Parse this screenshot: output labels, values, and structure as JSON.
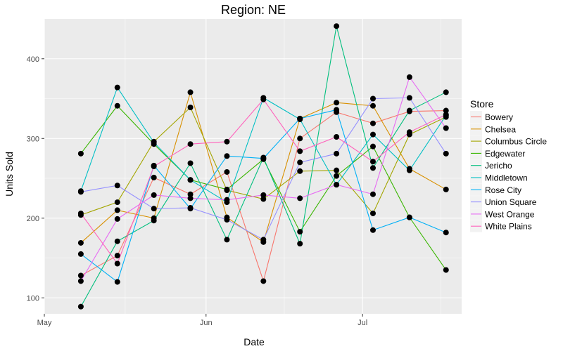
{
  "chart_data": {
    "type": "line",
    "title": "Region: NE",
    "xlabel": "Date",
    "ylabel": "Units Sold",
    "x": [
      "2016-05-08",
      "2016-05-15",
      "2016-05-22",
      "2016-05-29",
      "2016-06-05",
      "2016-06-12",
      "2016-06-19",
      "2016-06-26",
      "2016-07-03",
      "2016-07-10",
      "2016-07-17"
    ],
    "x_ticks": [
      {
        "date": "2016-05-01",
        "label": "May"
      },
      {
        "date": "2016-06-01",
        "label": "Jun"
      },
      {
        "date": "2016-07-01",
        "label": "Jul"
      }
    ],
    "xlim": [
      "2016-05-01",
      "2016-07-20"
    ],
    "ylim": [
      80,
      450
    ],
    "y_ticks": [
      100,
      200,
      300,
      400
    ],
    "grid": true,
    "point_color": "#000000",
    "legend": {
      "title": "Store",
      "position": "right"
    },
    "series": [
      {
        "name": "Bowery",
        "color": "#F8766D",
        "values": [
          128,
          153,
          251,
          230,
          258,
          121,
          300,
          333,
          319,
          334,
          335
        ]
      },
      {
        "name": "Chelsea",
        "color": "#D89000",
        "values": [
          169,
          210,
          200,
          358,
          201,
          170,
          325,
          345,
          341,
          262,
          236
        ]
      },
      {
        "name": "Columbus Circle",
        "color": "#A3A500",
        "values": [
          204,
          220,
          296,
          339,
          235,
          224,
          259,
          260,
          206,
          305,
          327
        ]
      },
      {
        "name": "Edgewater",
        "color": "#39B600",
        "values": [
          281,
          341,
          293,
          248,
          236,
          274,
          183,
          253,
          290,
          201,
          135
        ]
      },
      {
        "name": "Jericho",
        "color": "#00BF7D",
        "values": [
          89,
          171,
          197,
          269,
          173,
          276,
          168,
          441,
          263,
          335,
          358
        ]
      },
      {
        "name": "Middletown",
        "color": "#00BFC4",
        "values": [
          234,
          364,
          295,
          248,
          220,
          351,
          324,
          242,
          305,
          260,
          329
        ]
      },
      {
        "name": "Rose City",
        "color": "#00B0F6",
        "values": [
          155,
          120,
          266,
          212,
          278,
          275,
          325,
          336,
          185,
          201,
          182
        ]
      },
      {
        "name": "Union Square",
        "color": "#9590FF",
        "values": [
          233,
          241,
          212,
          213,
          198,
          173,
          270,
          281,
          350,
          351,
          281
        ]
      },
      {
        "name": "West Orange",
        "color": "#E76BF3",
        "values": [
          121,
          199,
          229,
          225,
          223,
          229,
          225,
          242,
          230,
          377,
          313
        ]
      },
      {
        "name": "White Plains",
        "color": "#FF62BC",
        "values": [
          206,
          143,
          265,
          293,
          296,
          349,
          284,
          302,
          271,
          308,
          330
        ]
      }
    ]
  }
}
